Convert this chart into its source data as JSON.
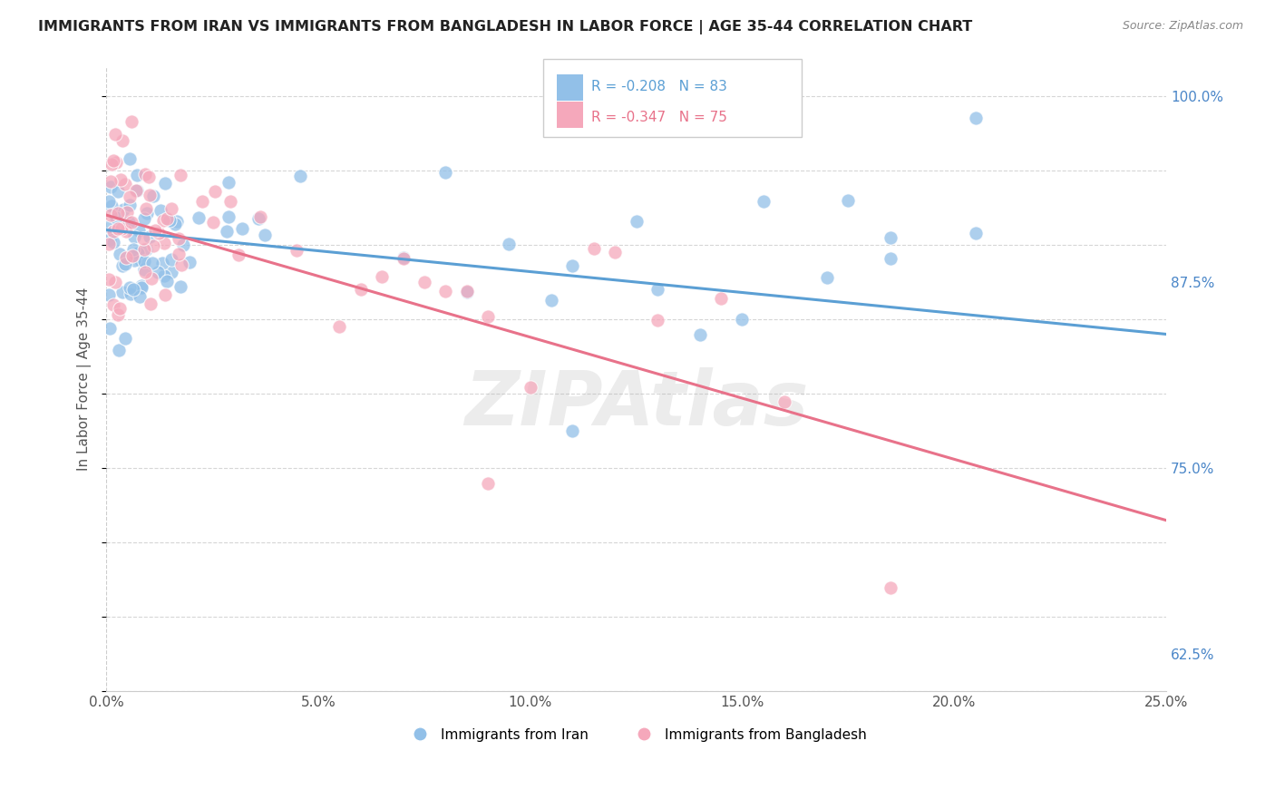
{
  "title": "IMMIGRANTS FROM IRAN VS IMMIGRANTS FROM BANGLADESH IN LABOR FORCE | AGE 35-44 CORRELATION CHART",
  "source": "Source: ZipAtlas.com",
  "ylabel_label": "In Labor Force | Age 35-44",
  "xlim": [
    0.0,
    25.0
  ],
  "ylim_min": 60.0,
  "ylim_max": 102.0,
  "y_ticks": [
    62.5,
    75.0,
    87.5,
    100.0
  ],
  "x_ticks": [
    0,
    5,
    10,
    15,
    20,
    25
  ],
  "iran_R": -0.208,
  "iran_N": 83,
  "bangladesh_R": -0.347,
  "bangladesh_N": 75,
  "iran_color": "#92c0e8",
  "bangladesh_color": "#f5a8bb",
  "iran_line_color": "#5b9fd4",
  "bangladesh_line_color": "#e8728a",
  "legend_label_iran": "Immigrants from Iran",
  "legend_label_bangladesh": "Immigrants from Bangladesh",
  "watermark": "ZIPAtlas",
  "background_color": "#ffffff",
  "grid_color": "#cccccc",
  "title_color": "#222222",
  "source_color": "#888888",
  "ylabel_color": "#555555",
  "tick_color": "#555555",
  "right_tick_color": "#4a86c8"
}
